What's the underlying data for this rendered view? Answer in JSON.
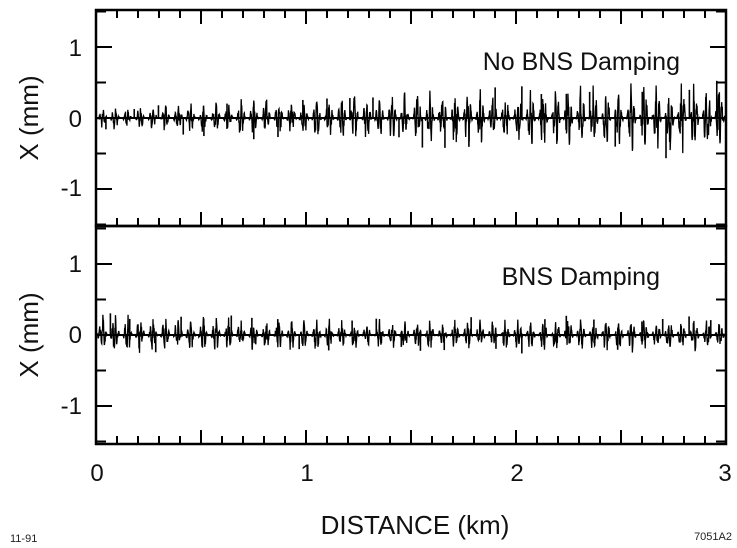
{
  "chart_data": [
    {
      "type": "line",
      "title": "",
      "annotation": "No BNS Damping",
      "xlabel": "DISTANCE (km)",
      "ylabel": "X (mm)",
      "xlim": [
        0,
        3
      ],
      "ylim": [
        -1.6,
        1.6
      ],
      "x_ticks": [
        "0",
        "1",
        "2",
        "3"
      ],
      "y_ticks": [
        "1",
        "0",
        "-1"
      ],
      "grid": false,
      "description_params": {
        "envelope_start_mm": 0.1,
        "envelope_end_mm": 0.35,
        "betatron_period_km": 0.12
      },
      "series": [
        {
          "x": [
            0,
            0.25,
            0.5,
            0.75,
            1.0,
            1.25,
            1.5,
            1.75,
            2.0,
            2.25,
            2.5,
            2.75,
            3.0
          ],
          "y_envelope": [
            0.1,
            0.12,
            0.15,
            0.18,
            0.2,
            0.22,
            0.25,
            0.27,
            0.28,
            0.3,
            0.32,
            0.34,
            0.35
          ]
        }
      ],
      "color": "#000000"
    },
    {
      "type": "line",
      "title": "",
      "annotation": "BNS Damping",
      "xlabel": "DISTANCE (km)",
      "ylabel": "X (mm)",
      "xlim": [
        0,
        3
      ],
      "ylim": [
        -1.6,
        1.6
      ],
      "x_ticks": [
        "0",
        "1",
        "2",
        "3"
      ],
      "y_ticks": [
        "1",
        "0",
        "-1"
      ],
      "grid": false,
      "description_params": {
        "envelope_start_mm": 0.2,
        "envelope_end_mm": 0.15,
        "betatron_period_km": 0.12
      },
      "series": [
        {
          "x": [
            0,
            0.25,
            0.5,
            0.75,
            1.0,
            1.25,
            1.5,
            1.75,
            2.0,
            2.25,
            2.5,
            2.75,
            3.0
          ],
          "y_envelope": [
            0.2,
            0.18,
            0.17,
            0.16,
            0.15,
            0.15,
            0.15,
            0.15,
            0.16,
            0.17,
            0.17,
            0.16,
            0.15
          ]
        }
      ],
      "color": "#000000"
    }
  ],
  "footer": {
    "left_note": "11-91",
    "right_note": "7051A2"
  }
}
